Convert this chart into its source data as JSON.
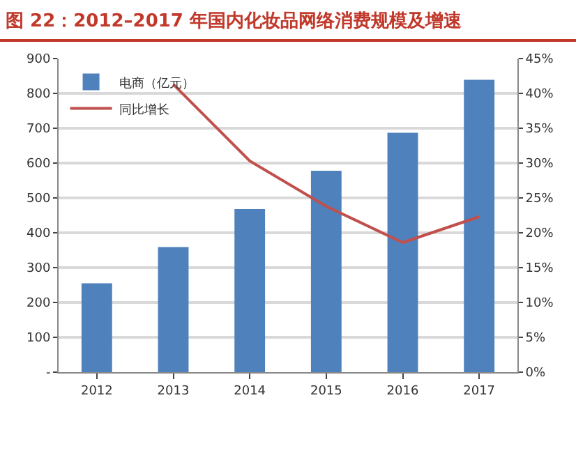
{
  "chart_data": {
    "type": "bar",
    "title": "图 22：2012–2017 年国内化妆品网络消费规模及增速",
    "categories": [
      "2012",
      "2013",
      "2014",
      "2015",
      "2016",
      "2017"
    ],
    "series": [
      {
        "name": "电商（亿元）",
        "color": "#4f81bd",
        "values": [
          255,
          359,
          468,
          578,
          687,
          839
        ]
      },
      {
        "name": "同比增长",
        "type": "line",
        "axis": "y2",
        "color": "#c0504d",
        "values": [
          null,
          41.3,
          30.3,
          23.8,
          18.6,
          22.3
        ]
      }
    ],
    "ylim": [
      0,
      900
    ],
    "yticks": [
      {
        "value": 0,
        "label": "-"
      },
      100,
      200,
      300,
      400,
      500,
      600,
      700,
      800,
      900
    ],
    "y2lim": [
      0,
      45
    ],
    "y2ticks": [
      {
        "value": 0,
        "label": "0%"
      },
      {
        "value": 5,
        "label": "5%"
      },
      {
        "value": 10,
        "label": "10%"
      },
      {
        "value": 15,
        "label": "15%"
      },
      {
        "value": 20,
        "label": "20%"
      },
      {
        "value": 25,
        "label": "25%"
      },
      {
        "value": 30,
        "label": "30%"
      },
      {
        "value": 35,
        "label": "35%"
      },
      {
        "value": 40,
        "label": "40%"
      },
      {
        "value": 45,
        "label": "45%"
      }
    ],
    "grid": "y",
    "legend": "top left",
    "marker": "none",
    "line_style": "solid"
  }
}
